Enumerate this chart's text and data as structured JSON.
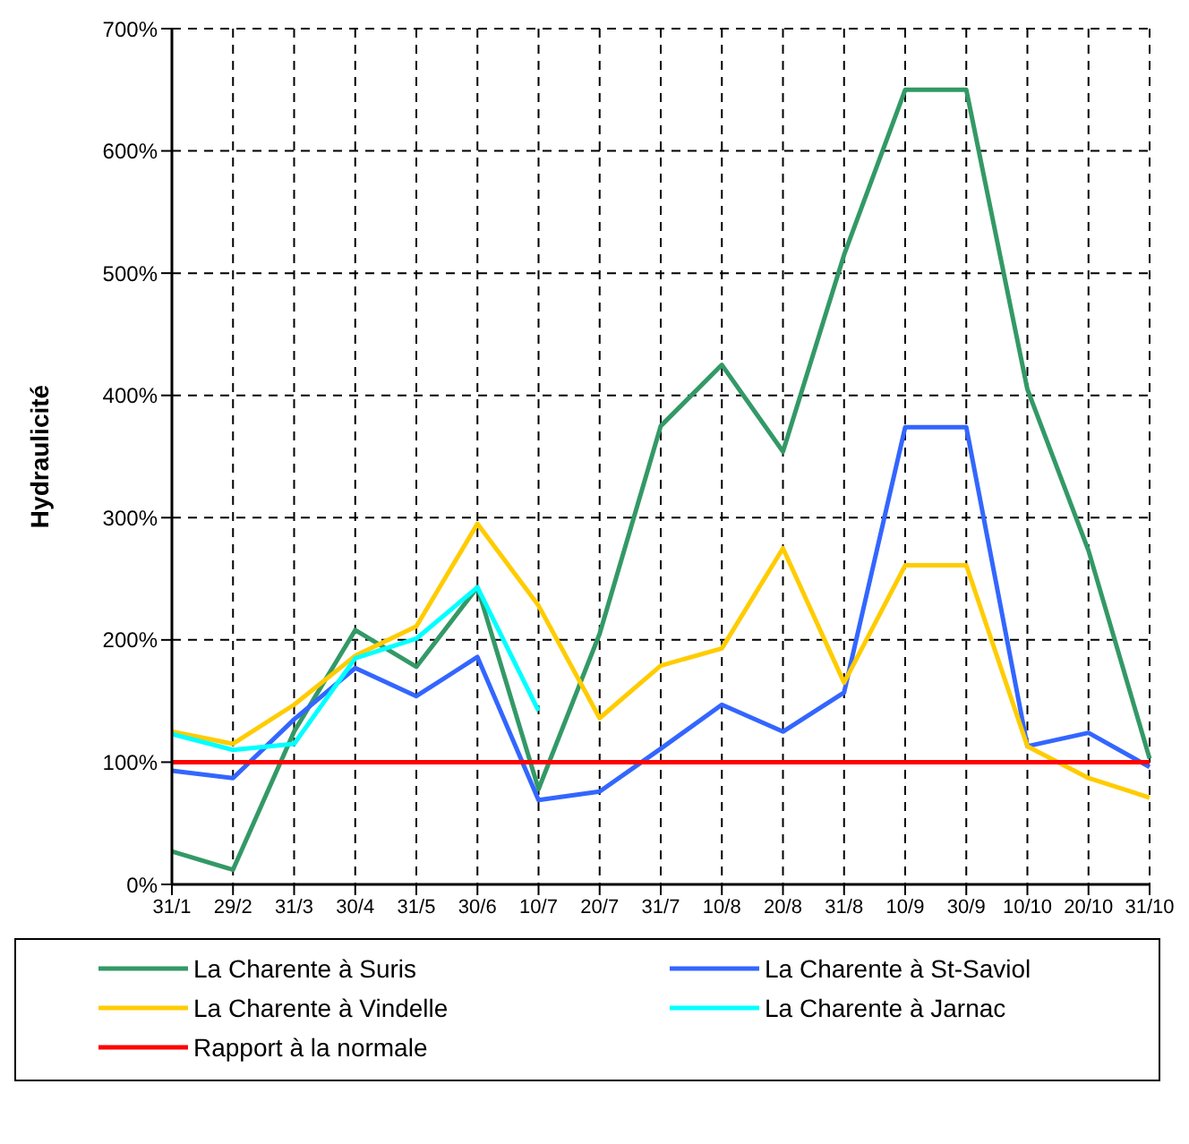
{
  "chart_data": {
    "type": "line",
    "ylabel": "Hydraulicité",
    "categories": [
      "31/1",
      "29/2",
      "31/3",
      "30/4",
      "31/5",
      "30/6",
      "10/7",
      "20/7",
      "31/7",
      "10/8",
      "20/8",
      "31/8",
      "10/9",
      "30/9",
      "10/10",
      "20/10",
      "31/10"
    ],
    "series": [
      {
        "name": "La Charente à Suris",
        "color": "#339966",
        "values": [
          27,
          12,
          125,
          208,
          178,
          243,
          78,
          205,
          375,
          425,
          354,
          515,
          650,
          650,
          405,
          273,
          103
        ]
      },
      {
        "name": "La Charente à St-Saviol",
        "color": "#3366ff",
        "values": [
          93,
          87,
          135,
          177,
          154,
          186,
          69,
          76,
          111,
          147,
          125,
          157,
          374,
          374,
          113,
          124,
          96
        ]
      },
      {
        "name": "La Charente à Vindelle",
        "color": "#ffcc00",
        "values": [
          125,
          115,
          147,
          187,
          211,
          295,
          228,
          136,
          179,
          193,
          275,
          165,
          261,
          261,
          113,
          87,
          71
        ]
      },
      {
        "name": "La Charente à Jarnac",
        "color": "#00ffff",
        "values": [
          123,
          110,
          115,
          185,
          201,
          243,
          142,
          null,
          null,
          null,
          null,
          null,
          null,
          null,
          null,
          null,
          null
        ]
      },
      {
        "name": "Rapport à la normale",
        "color": "#ff0000",
        "values": [
          100,
          100,
          100,
          100,
          100,
          100,
          100,
          100,
          100,
          100,
          100,
          100,
          100,
          100,
          100,
          100,
          100
        ]
      }
    ],
    "ylim": [
      0,
      700
    ],
    "yticks": [
      {
        "value": 0,
        "label": "0%"
      },
      {
        "value": 100,
        "label": "100%"
      },
      {
        "value": 200,
        "label": "200%"
      },
      {
        "value": 300,
        "label": "300%"
      },
      {
        "value": 400,
        "label": "400%"
      },
      {
        "value": 500,
        "label": "500%"
      },
      {
        "value": 600,
        "label": "600%"
      },
      {
        "value": 700,
        "label": "700%"
      }
    ],
    "grid": true,
    "legend": "bottom",
    "marker": "none",
    "line_style": "solid"
  }
}
